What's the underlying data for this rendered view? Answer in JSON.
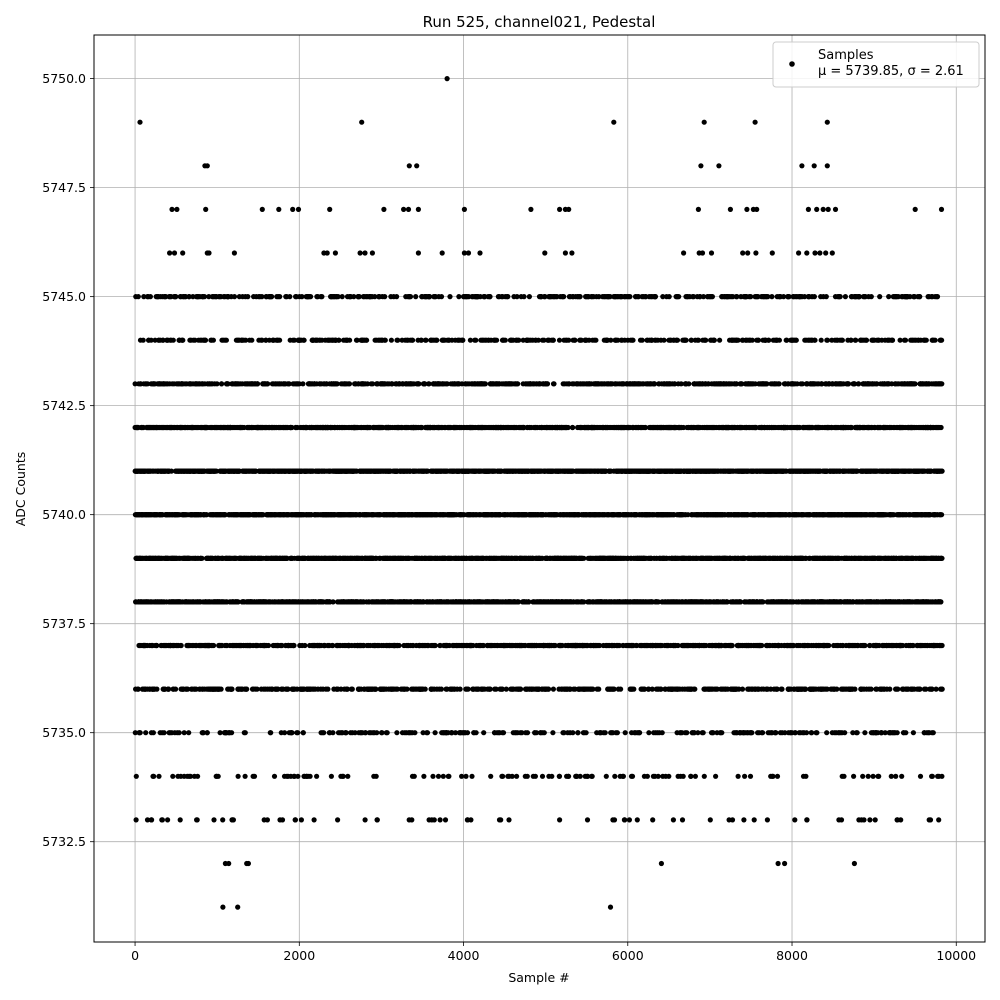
{
  "chart_data": {
    "type": "scatter",
    "title": "Run 525, channel021, Pedestal",
    "xlabel": "Sample #",
    "ylabel": "ADC Counts",
    "xlim": [
      -500,
      10350
    ],
    "ylim": [
      5730.2,
      5751.0
    ],
    "x_ticks": [
      0,
      2000,
      4000,
      6000,
      8000,
      10000
    ],
    "x_tick_labels": [
      "0",
      "2000",
      "4000",
      "6000",
      "8000",
      "10000"
    ],
    "y_ticks": [
      5732.5,
      5735.0,
      5737.5,
      5740.0,
      5742.5,
      5745.0,
      5747.5,
      5750.0
    ],
    "y_tick_labels": [
      "5732.5",
      "5735.0",
      "5737.5",
      "5740.0",
      "5742.5",
      "5745.0",
      "5747.5",
      "5750.0"
    ],
    "grid": true,
    "legend_position": "top-right",
    "marker_color": "#000000",
    "series": [
      {
        "name": "Samples",
        "legend_stats": "μ = 5739.85, σ = 2.61",
        "mean": 5739.85,
        "std": 2.61,
        "sample_count": 9830,
        "x_range": [
          0,
          9830
        ],
        "levels": [
          5731,
          5732,
          5733,
          5734,
          5735,
          5736,
          5737,
          5738,
          5739,
          5740,
          5741,
          5742,
          5743,
          5744,
          5745,
          5746,
          5747,
          5748,
          5749,
          5750
        ],
        "points": [
          [
            3800,
            5750
          ],
          [
            60,
            5749
          ],
          [
            2760,
            5749
          ],
          [
            5830,
            5749
          ],
          [
            6930,
            5749
          ],
          [
            7550,
            5749
          ],
          [
            8430,
            5749
          ],
          [
            850,
            5748
          ],
          [
            880,
            5748
          ],
          [
            3340,
            5748
          ],
          [
            3430,
            5748
          ],
          [
            6890,
            5748
          ],
          [
            7110,
            5748
          ],
          [
            8120,
            5748
          ],
          [
            8270,
            5748
          ],
          [
            8430,
            5748
          ],
          [
            450,
            5747
          ],
          [
            510,
            5747
          ],
          [
            860,
            5747
          ],
          [
            1550,
            5747
          ],
          [
            1750,
            5747
          ],
          [
            1920,
            5747
          ],
          [
            1990,
            5747
          ],
          [
            2370,
            5747
          ],
          [
            3030,
            5747
          ],
          [
            3270,
            5747
          ],
          [
            3330,
            5747
          ],
          [
            3450,
            5747
          ],
          [
            4010,
            5747
          ],
          [
            4820,
            5747
          ],
          [
            5170,
            5747
          ],
          [
            5240,
            5747
          ],
          [
            5280,
            5747
          ],
          [
            6860,
            5747
          ],
          [
            7250,
            5747
          ],
          [
            7450,
            5747
          ],
          [
            7530,
            5747
          ],
          [
            7570,
            5747
          ],
          [
            8200,
            5747
          ],
          [
            8300,
            5747
          ],
          [
            8380,
            5747
          ],
          [
            8440,
            5747
          ],
          [
            8530,
            5747
          ],
          [
            9500,
            5747
          ],
          [
            9820,
            5747
          ],
          [
            420,
            5746
          ],
          [
            480,
            5746
          ],
          [
            580,
            5746
          ],
          [
            880,
            5746
          ],
          [
            900,
            5746
          ],
          [
            1210,
            5746
          ],
          [
            2300,
            5746
          ],
          [
            2340,
            5746
          ],
          [
            2440,
            5746
          ],
          [
            2740,
            5746
          ],
          [
            2800,
            5746
          ],
          [
            2890,
            5746
          ],
          [
            3450,
            5746
          ],
          [
            3740,
            5746
          ],
          [
            4010,
            5746
          ],
          [
            4060,
            5746
          ],
          [
            4200,
            5746
          ],
          [
            4990,
            5746
          ],
          [
            5240,
            5746
          ],
          [
            5320,
            5746
          ],
          [
            6680,
            5746
          ],
          [
            6870,
            5746
          ],
          [
            6910,
            5746
          ],
          [
            7020,
            5746
          ],
          [
            7400,
            5746
          ],
          [
            7460,
            5746
          ],
          [
            7560,
            5746
          ],
          [
            7760,
            5746
          ],
          [
            8080,
            5746
          ],
          [
            8180,
            5746
          ],
          [
            8280,
            5746
          ],
          [
            8340,
            5746
          ],
          [
            8410,
            5746
          ],
          [
            8490,
            5746
          ],
          [
            1070,
            5731
          ],
          [
            1250,
            5731
          ],
          [
            5790,
            5731
          ],
          [
            1100,
            5732
          ],
          [
            1140,
            5732
          ],
          [
            1360,
            5732
          ],
          [
            1380,
            5732
          ],
          [
            6410,
            5732
          ],
          [
            7830,
            5732
          ],
          [
            7910,
            5732
          ],
          [
            8760,
            5732
          ]
        ]
      }
    ]
  }
}
